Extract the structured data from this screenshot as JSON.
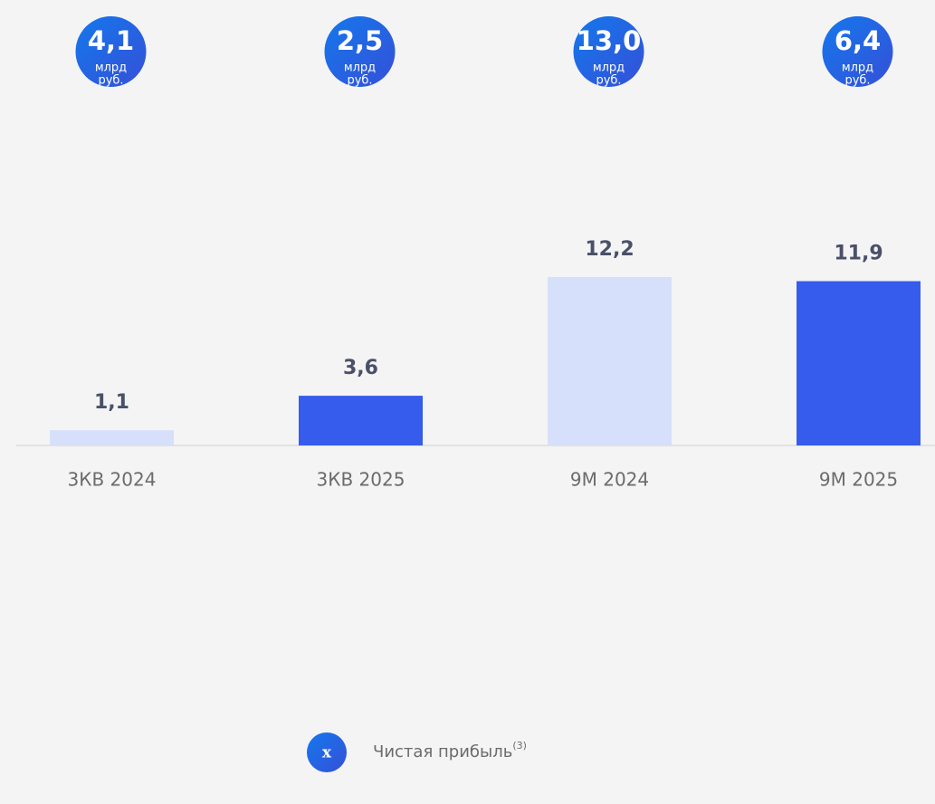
{
  "chart_data": {
    "type": "bar",
    "categories": [
      "3КВ 2024",
      "3КВ 2025",
      "9М 2024",
      "9М 2025"
    ],
    "values": [
      1.1,
      3.6,
      12.2,
      11.9
    ],
    "value_labels": [
      "1,1",
      "3,6",
      "12,2",
      "11,9"
    ],
    "colors": [
      "#d6e0fb",
      "#365ced",
      "#d6e0fb",
      "#365ced"
    ],
    "badges": {
      "name": "Чистая прибыль",
      "note": "(3)",
      "marker": "x",
      "values": [
        4.1,
        2.5,
        13.0,
        6.4
      ],
      "value_labels": [
        "4,1",
        "2,5",
        "13,0",
        "6,4"
      ],
      "unit_lines": [
        "млрд",
        "руб."
      ]
    }
  }
}
